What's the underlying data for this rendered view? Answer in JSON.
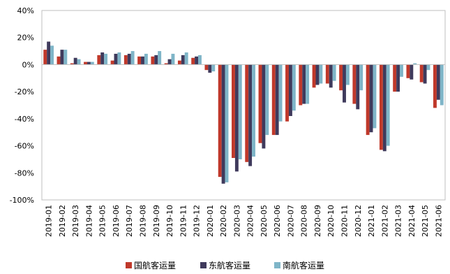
{
  "chart_data": {
    "type": "bar",
    "categories": [
      "2019-01",
      "2019-02",
      "2019-03",
      "2019-04",
      "2019-05",
      "2019-06",
      "2019-07",
      "2019-08",
      "2019-09",
      "2019-10",
      "2019-11",
      "2019-12",
      "2020-01",
      "2020-02",
      "2020-03",
      "2020-04",
      "2020-05",
      "2020-06",
      "2020-07",
      "2020-08",
      "2020-09",
      "2020-10",
      "2020-11",
      "2020-12",
      "2021-01",
      "2021-02",
      "2021-03",
      "2021-04",
      "2021-05",
      "2021-06"
    ],
    "series": [
      {
        "name": "国航客运量",
        "color": "#c0392b",
        "values": [
          11,
          6,
          1,
          2,
          7,
          3,
          7,
          6,
          6,
          1,
          3,
          5,
          -4,
          -83,
          -69,
          -72,
          -58,
          -52,
          -42,
          -30,
          -17,
          -14,
          -19,
          -29,
          -52,
          -63,
          -20,
          -10,
          -13,
          -32
        ]
      },
      {
        "name": "东航客运量",
        "color": "#3f3a5c",
        "values": [
          17,
          11,
          5,
          2,
          9,
          8,
          8,
          6,
          7,
          4,
          7,
          6,
          -6,
          -88,
          -79,
          -75,
          -62,
          -52,
          -38,
          -29,
          -15,
          -17,
          -28,
          -33,
          -50,
          -64,
          -20,
          -11,
          -14,
          -26
        ]
      },
      {
        "name": "南航客运量",
        "color": "#7fb5c8",
        "values": [
          14,
          11,
          4,
          2,
          8,
          9,
          10,
          8,
          10,
          8,
          9,
          7,
          -5,
          -87,
          -70,
          -68,
          -52,
          -42,
          -34,
          -29,
          -14,
          -12,
          -15,
          -19,
          -47,
          -60,
          -9,
          1,
          -4,
          -30
        ]
      }
    ],
    "ylim": [
      -100,
      40
    ],
    "yticks": [
      -100,
      -80,
      -60,
      -40,
      -20,
      0,
      20,
      40
    ],
    "ytick_labels": [
      "-100%",
      "-80%",
      "-60%",
      "-40%",
      "-20%",
      "0%",
      "20%",
      "40%"
    ],
    "legend_position": "bottom",
    "grid": false
  }
}
